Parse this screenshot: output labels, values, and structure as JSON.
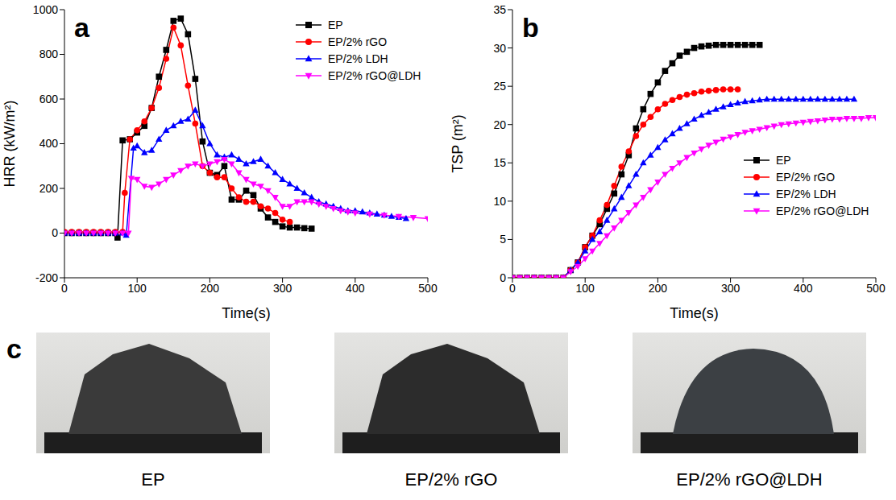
{
  "chart_data": [
    {
      "type": "line",
      "title": "a",
      "x_label": "Time(s)",
      "y_label": "HRR (kW/m²)",
      "xlim": [
        0,
        500
      ],
      "xticks": [
        0,
        100,
        200,
        300,
        400,
        500
      ],
      "ylim": [
        -200,
        1000
      ],
      "yticks": [
        -200,
        0,
        200,
        400,
        600,
        800,
        1000
      ],
      "legend": "upper right",
      "grid": false,
      "series": [
        {
          "name": "EP",
          "color": "#000000",
          "marker": "square",
          "x": [
            0,
            10,
            20,
            30,
            40,
            50,
            60,
            70,
            73,
            80,
            90,
            100,
            110,
            120,
            130,
            140,
            150,
            160,
            170,
            180,
            190,
            200,
            210,
            220,
            230,
            240,
            250,
            260,
            270,
            280,
            290,
            300,
            310,
            320,
            330,
            340
          ],
          "values": [
            0,
            0,
            0,
            0,
            0,
            0,
            0,
            0,
            -20,
            415,
            420,
            450,
            480,
            560,
            700,
            820,
            950,
            960,
            890,
            690,
            410,
            270,
            260,
            300,
            150,
            150,
            190,
            170,
            110,
            70,
            50,
            30,
            25,
            25,
            22,
            20
          ]
        },
        {
          "name": "EP/2% rGO",
          "color": "#ff0000",
          "marker": "circle",
          "x": [
            0,
            10,
            20,
            30,
            40,
            50,
            60,
            70,
            80,
            83,
            90,
            100,
            110,
            120,
            130,
            140,
            150,
            160,
            170,
            180,
            190,
            200,
            210,
            220,
            230,
            240,
            250,
            260,
            270,
            280,
            290,
            300,
            310
          ],
          "values": [
            5,
            5,
            5,
            5,
            5,
            5,
            5,
            5,
            5,
            180,
            420,
            460,
            500,
            560,
            650,
            780,
            920,
            840,
            660,
            490,
            300,
            270,
            250,
            250,
            200,
            160,
            140,
            140,
            120,
            110,
            90,
            60,
            50
          ]
        },
        {
          "name": "EP/2% LDH",
          "color": "#0000ff",
          "marker": "triangle",
          "x": [
            0,
            10,
            20,
            30,
            40,
            50,
            60,
            70,
            80,
            85,
            95,
            100,
            110,
            120,
            130,
            140,
            150,
            160,
            170,
            180,
            190,
            200,
            210,
            220,
            230,
            240,
            250,
            260,
            270,
            280,
            290,
            300,
            310,
            320,
            330,
            340,
            350,
            360,
            370,
            380,
            390,
            400,
            410,
            420,
            430,
            440,
            450,
            460,
            470
          ],
          "values": [
            0,
            0,
            0,
            0,
            0,
            0,
            0,
            0,
            0,
            -10,
            380,
            390,
            360,
            370,
            420,
            460,
            480,
            500,
            510,
            550,
            480,
            400,
            350,
            340,
            350,
            330,
            310,
            320,
            330,
            300,
            270,
            240,
            220,
            200,
            180,
            160,
            140,
            130,
            120,
            110,
            100,
            100,
            95,
            90,
            85,
            80,
            75,
            70,
            65
          ]
        },
        {
          "name": "EP/2% rGO@LDH",
          "color": "#ff00ff",
          "marker": "triangle-down",
          "x": [
            0,
            10,
            20,
            30,
            40,
            50,
            60,
            70,
            80,
            88,
            92,
            100,
            110,
            120,
            130,
            140,
            150,
            160,
            170,
            180,
            190,
            200,
            210,
            220,
            230,
            240,
            250,
            260,
            270,
            280,
            290,
            300,
            310,
            320,
            330,
            340,
            350,
            360,
            370,
            380,
            390,
            400,
            420,
            440,
            460,
            480,
            500
          ],
          "values": [
            0,
            0,
            0,
            0,
            0,
            0,
            0,
            0,
            0,
            0,
            245,
            240,
            210,
            205,
            220,
            240,
            260,
            280,
            300,
            310,
            300,
            310,
            320,
            330,
            310,
            270,
            240,
            220,
            210,
            190,
            160,
            120,
            120,
            140,
            140,
            140,
            130,
            120,
            110,
            100,
            95,
            90,
            85,
            80,
            75,
            70,
            65
          ]
        }
      ]
    },
    {
      "type": "line",
      "title": "b",
      "x_label": "Time(s)",
      "y_label": "TSP (m²)",
      "xlim": [
        0,
        500
      ],
      "xticks": [
        0,
        100,
        200,
        300,
        400,
        500
      ],
      "ylim": [
        0,
        35
      ],
      "yticks": [
        0,
        5,
        10,
        15,
        20,
        25,
        30,
        35
      ],
      "legend": "right",
      "grid": false,
      "series": [
        {
          "name": "EP",
          "color": "#000000",
          "marker": "square",
          "x": [
            0,
            10,
            20,
            30,
            40,
            50,
            60,
            70,
            80,
            90,
            100,
            110,
            120,
            130,
            140,
            150,
            160,
            170,
            180,
            190,
            200,
            210,
            220,
            230,
            240,
            250,
            260,
            270,
            280,
            290,
            300,
            310,
            320,
            330,
            340
          ],
          "values": [
            0,
            0,
            0,
            0,
            0,
            0,
            0,
            0,
            1,
            2,
            4,
            5.5,
            7,
            9,
            11,
            13.5,
            16,
            19.5,
            22,
            24,
            25.5,
            27,
            28,
            29,
            29.5,
            30,
            30.2,
            30.3,
            30.4,
            30.4,
            30.4,
            30.4,
            30.4,
            30.4,
            30.4
          ]
        },
        {
          "name": "EP/2% rGO",
          "color": "#ff0000",
          "marker": "circle",
          "x": [
            0,
            10,
            20,
            30,
            40,
            50,
            60,
            70,
            80,
            90,
            100,
            110,
            120,
            130,
            140,
            150,
            160,
            170,
            180,
            190,
            200,
            210,
            220,
            230,
            240,
            250,
            260,
            270,
            280,
            290,
            300,
            310
          ],
          "values": [
            0,
            0,
            0,
            0,
            0,
            0,
            0,
            0,
            1,
            2,
            4,
            5.5,
            7.5,
            9.5,
            12,
            14.5,
            16.5,
            18.5,
            20,
            21,
            22,
            22.7,
            23.2,
            23.6,
            23.9,
            24.1,
            24.3,
            24.4,
            24.5,
            24.6,
            24.6,
            24.6
          ]
        },
        {
          "name": "EP/2% LDH",
          "color": "#0000ff",
          "marker": "triangle",
          "x": [
            0,
            10,
            20,
            30,
            40,
            50,
            60,
            70,
            80,
            90,
            100,
            110,
            120,
            130,
            140,
            150,
            160,
            170,
            180,
            190,
            200,
            210,
            220,
            230,
            240,
            250,
            260,
            270,
            280,
            290,
            300,
            310,
            320,
            330,
            340,
            350,
            360,
            370,
            380,
            390,
            400,
            410,
            420,
            430,
            440,
            450,
            460,
            470
          ],
          "values": [
            0,
            0,
            0,
            0,
            0,
            0,
            0,
            0,
            1,
            2,
            3.5,
            5,
            6,
            7.5,
            9,
            10.5,
            12,
            13.5,
            15,
            16,
            17,
            18,
            18.8,
            19.5,
            20.1,
            20.7,
            21.2,
            21.6,
            22,
            22.3,
            22.6,
            22.8,
            23,
            23.1,
            23.2,
            23.3,
            23.3,
            23.3,
            23.3,
            23.3,
            23.3,
            23.3,
            23.3,
            23.3,
            23.3,
            23.3,
            23.3,
            23.3
          ]
        },
        {
          "name": "EP/2% rGO@LDH",
          "color": "#ff00ff",
          "marker": "triangle-down",
          "x": [
            0,
            10,
            20,
            30,
            40,
            50,
            60,
            70,
            80,
            90,
            100,
            110,
            120,
            130,
            140,
            150,
            160,
            170,
            180,
            190,
            200,
            210,
            220,
            230,
            240,
            250,
            260,
            270,
            280,
            290,
            300,
            310,
            320,
            330,
            340,
            350,
            360,
            370,
            380,
            390,
            400,
            410,
            420,
            430,
            440,
            450,
            460,
            470,
            480,
            490,
            500
          ],
          "values": [
            0,
            0,
            0,
            0,
            0,
            0,
            0,
            0,
            0.8,
            1.5,
            2.5,
            3.5,
            4.5,
            5.5,
            6.5,
            7.5,
            8.5,
            9.5,
            10.5,
            11.5,
            12.5,
            13.5,
            14.3,
            15,
            15.7,
            16.3,
            16.8,
            17.3,
            17.7,
            18.1,
            18.4,
            18.7,
            19,
            19.2,
            19.4,
            19.6,
            19.8,
            20,
            20.1,
            20.2,
            20.3,
            20.4,
            20.5,
            20.6,
            20.7,
            20.7,
            20.8,
            20.8,
            20.8,
            20.9,
            20.9
          ]
        }
      ]
    }
  ],
  "images": {
    "title": "c",
    "captions": [
      "EP",
      "EP/2% rGO",
      "EP/2% rGO@LDH"
    ]
  }
}
